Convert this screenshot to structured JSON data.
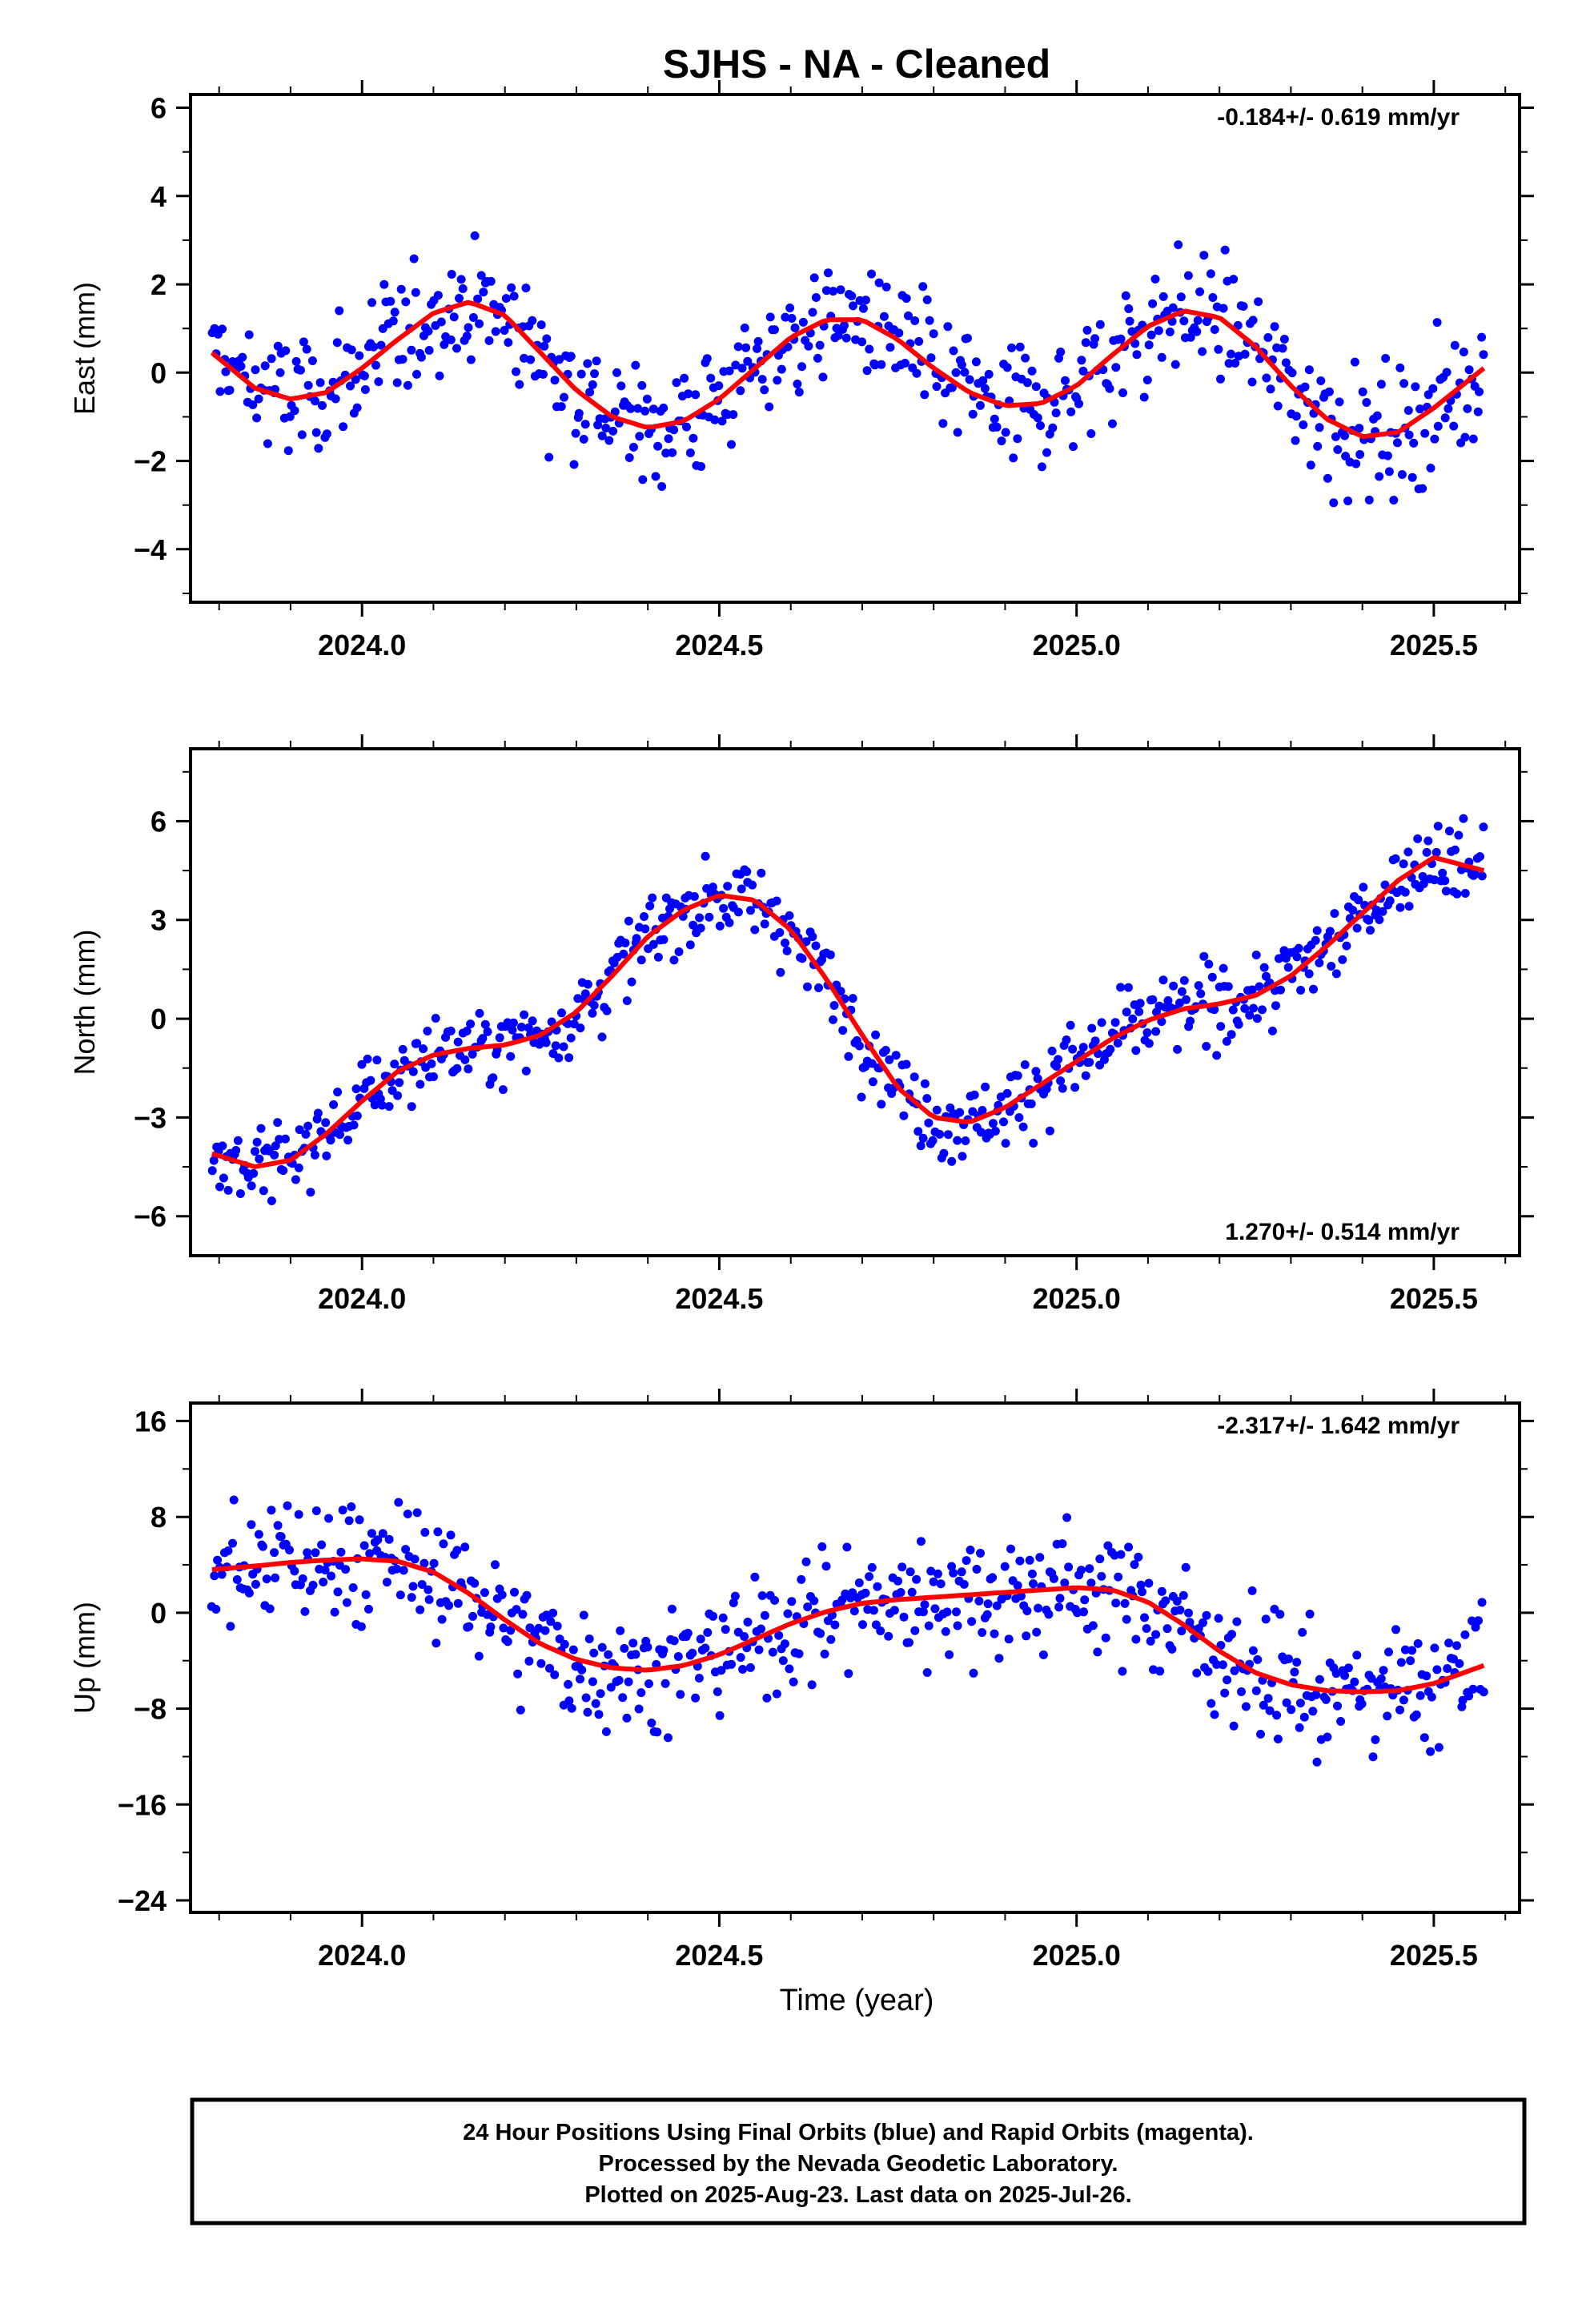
{
  "title": "SJHS  - NA - Cleaned",
  "xlabel": "Time (year)",
  "footer": {
    "line1": "24 Hour Positions Using Final Orbits (blue) and Rapid Orbits (magenta).",
    "line2": "Processed by the Nevada Geodetic Laboratory.",
    "line3": "Plotted on 2025-Aug-23. Last data on 2025-Jul-26."
  },
  "colors": {
    "data": "#0000ff",
    "fit": "#ff0000",
    "frame": "#000000"
  },
  "chart_data": [
    {
      "type": "scatter",
      "component": "east",
      "ylabel": "East (mm)",
      "rate_label": "-0.184+/- 0.619 mm/yr",
      "rate_position": "top-right",
      "xlim": [
        2023.76,
        2025.62
      ],
      "ylim": [
        -5.2,
        6.3
      ],
      "xticks": [
        2024.0,
        2024.5,
        2025.0,
        2025.5
      ],
      "xticklabels": [
        "2024.0",
        "2024.5",
        "2025.0",
        "2025.5"
      ],
      "yticks": [
        6,
        4,
        2,
        0,
        -2,
        -4
      ],
      "yticklabels": [
        "6",
        "4",
        "2",
        "0",
        "−2",
        "−4"
      ],
      "fit_line": {
        "x": [
          2023.79,
          2023.85,
          2023.9,
          2023.95,
          2024.0,
          2024.05,
          2024.1,
          2024.15,
          2024.2,
          2024.25,
          2024.3,
          2024.35,
          2024.4,
          2024.45,
          2024.5,
          2024.55,
          2024.6,
          2024.65,
          2024.7,
          2024.75,
          2024.8,
          2024.85,
          2024.9,
          2024.95,
          2025.0,
          2025.05,
          2025.1,
          2025.15,
          2025.2,
          2025.25,
          2025.3,
          2025.35,
          2025.4,
          2025.45,
          2025.5,
          2025.57
        ],
        "y": [
          0.45,
          -0.35,
          -0.6,
          -0.45,
          0.1,
          0.75,
          1.35,
          1.6,
          1.3,
          0.45,
          -0.4,
          -1.0,
          -1.25,
          -1.1,
          -0.6,
          0.1,
          0.8,
          1.2,
          1.2,
          0.75,
          0.1,
          -0.45,
          -0.75,
          -0.7,
          -0.3,
          0.4,
          1.05,
          1.4,
          1.25,
          0.6,
          -0.3,
          -1.05,
          -1.45,
          -1.35,
          -0.8,
          0.1
        ]
      }
    },
    {
      "type": "scatter",
      "component": "north",
      "ylabel": "North (mm)",
      "rate_label": "1.270+/- 0.514 mm/yr",
      "rate_position": "bottom-right",
      "xlim": [
        2023.76,
        2025.62
      ],
      "ylim": [
        -7.2,
        8.2
      ],
      "xticks": [
        2024.0,
        2024.5,
        2025.0,
        2025.5
      ],
      "xticklabels": [
        "2024.0",
        "2024.5",
        "2025.0",
        "2025.5"
      ],
      "yticks": [
        6,
        3,
        0,
        -3,
        -6
      ],
      "yticklabels": [
        "6",
        "3",
        "0",
        "−3",
        "−6"
      ],
      "fit_line": {
        "x": [
          2023.79,
          2023.85,
          2023.9,
          2023.95,
          2024.0,
          2024.05,
          2024.1,
          2024.15,
          2024.2,
          2024.25,
          2024.3,
          2024.35,
          2024.4,
          2024.45,
          2024.5,
          2024.55,
          2024.6,
          2024.65,
          2024.7,
          2024.75,
          2024.8,
          2024.85,
          2024.9,
          2024.95,
          2025.0,
          2025.05,
          2025.1,
          2025.15,
          2025.2,
          2025.25,
          2025.3,
          2025.35,
          2025.4,
          2025.45,
          2025.5,
          2025.57
        ],
        "y": [
          -4.1,
          -4.5,
          -4.3,
          -3.5,
          -2.5,
          -1.6,
          -1.1,
          -0.9,
          -0.8,
          -0.5,
          0.2,
          1.3,
          2.5,
          3.3,
          3.75,
          3.6,
          2.7,
          1.2,
          -0.5,
          -2.1,
          -3.0,
          -3.15,
          -2.7,
          -2.0,
          -1.3,
          -0.6,
          -0.05,
          0.3,
          0.45,
          0.7,
          1.3,
          2.2,
          3.2,
          4.2,
          4.9,
          4.5
        ]
      }
    },
    {
      "type": "scatter",
      "component": "up",
      "ylabel": "Up (mm)",
      "rate_label": "-2.317+/- 1.642 mm/yr",
      "rate_position": "top-right",
      "xlim": [
        2023.76,
        2025.62
      ],
      "ylim": [
        -25,
        17.5
      ],
      "xticks": [
        2024.0,
        2024.5,
        2025.0,
        2025.5
      ],
      "xticklabels": [
        "2024.0",
        "2024.5",
        "2025.0",
        "2025.5"
      ],
      "yticks": [
        16,
        8,
        0,
        -8,
        -16,
        -24
      ],
      "yticklabels": [
        "16",
        "8",
        "0",
        "−8",
        "−16",
        "−24"
      ],
      "fit_line": {
        "x": [
          2023.79,
          2023.85,
          2023.9,
          2023.95,
          2024.0,
          2024.05,
          2024.1,
          2024.15,
          2024.2,
          2024.25,
          2024.3,
          2024.35,
          2024.4,
          2024.45,
          2024.5,
          2024.55,
          2024.6,
          2024.65,
          2024.7,
          2024.75,
          2024.8,
          2024.85,
          2024.9,
          2024.95,
          2025.0,
          2025.05,
          2025.1,
          2025.15,
          2025.2,
          2025.25,
          2025.3,
          2025.35,
          2025.4,
          2025.45,
          2025.5,
          2025.57
        ],
        "y": [
          3.6,
          3.9,
          4.2,
          4.4,
          4.5,
          4.3,
          3.4,
          1.6,
          -0.6,
          -2.6,
          -3.9,
          -4.6,
          -4.8,
          -4.4,
          -3.5,
          -2.2,
          -0.9,
          0.1,
          0.8,
          1.1,
          1.3,
          1.5,
          1.7,
          1.9,
          2.1,
          1.9,
          0.9,
          -1.0,
          -3.2,
          -5.0,
          -6.0,
          -6.5,
          -6.6,
          -6.5,
          -5.9,
          -4.4
        ]
      }
    }
  ]
}
